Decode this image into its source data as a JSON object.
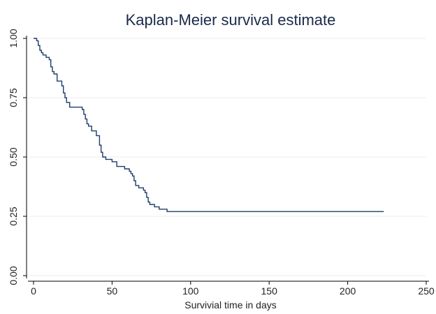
{
  "chart_data": {
    "type": "line",
    "title": "Kaplan-Meier survival estimate",
    "xlabel": "Survivial time in days",
    "ylabel": "",
    "xlim": [
      0,
      250
    ],
    "ylim": [
      0,
      1
    ],
    "x_ticks": [
      0,
      50,
      100,
      150,
      200,
      250
    ],
    "x_tick_labels": [
      "0",
      "50",
      "100",
      "150",
      "200",
      "250"
    ],
    "y_ticks": [
      0,
      0.25,
      0.5,
      0.75,
      1
    ],
    "y_tick_labels": [
      "0.00",
      "0.25",
      "0.50",
      "0.75",
      "1.00"
    ],
    "grid": true,
    "step": true,
    "line_color": "#1f3c6e",
    "series": [
      {
        "x": [
          0,
          2,
          3,
          4,
          5,
          6,
          8,
          10,
          11,
          12,
          13,
          15,
          18,
          19,
          20,
          21,
          23,
          30,
          31,
          32,
          33,
          34,
          35,
          37,
          40,
          42,
          43,
          44,
          46,
          50,
          53,
          57,
          58,
          61,
          62,
          63,
          64,
          65,
          67,
          70,
          71,
          72,
          73,
          74,
          75,
          77,
          80,
          83,
          85,
          88,
          223
        ],
        "y": [
          1.0,
          0.99,
          0.97,
          0.95,
          0.94,
          0.93,
          0.92,
          0.91,
          0.88,
          0.86,
          0.85,
          0.82,
          0.8,
          0.77,
          0.75,
          0.73,
          0.71,
          0.71,
          0.7,
          0.68,
          0.66,
          0.64,
          0.63,
          0.61,
          0.59,
          0.55,
          0.52,
          0.5,
          0.49,
          0.48,
          0.46,
          0.46,
          0.45,
          0.44,
          0.43,
          0.42,
          0.4,
          0.38,
          0.37,
          0.36,
          0.35,
          0.33,
          0.31,
          0.3,
          0.3,
          0.29,
          0.28,
          0.28,
          0.27,
          0.27,
          0.27
        ]
      }
    ]
  }
}
